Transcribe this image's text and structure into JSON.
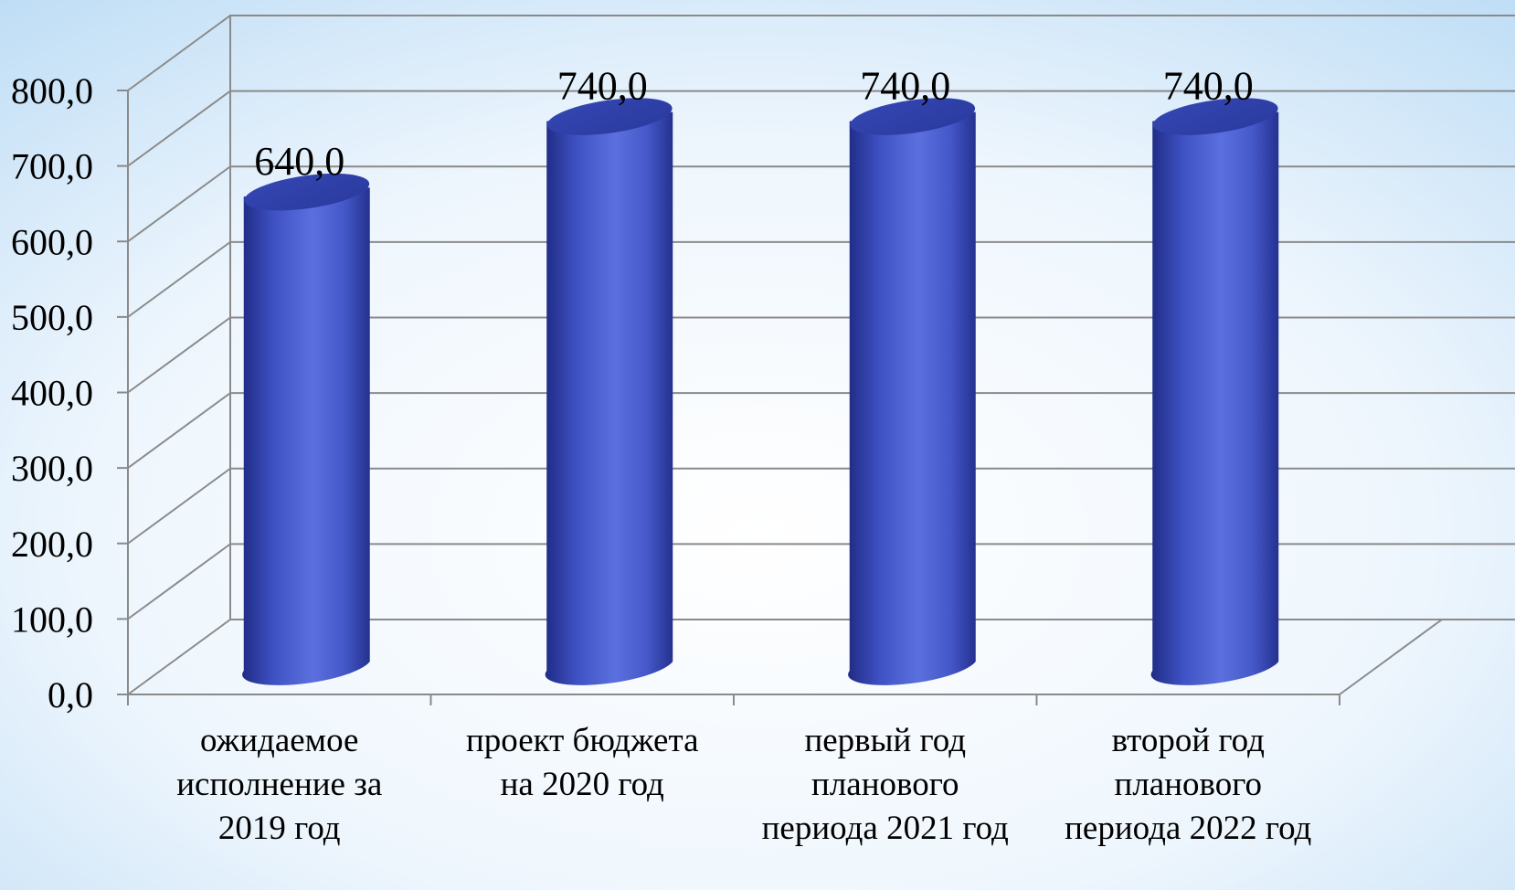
{
  "chart_data": {
    "type": "bar",
    "style": "3d-cylinder",
    "categories": [
      [
        "ожидаемое",
        "исполнение за",
        "2019 год"
      ],
      [
        "проект бюджета",
        "на 2020 год"
      ],
      [
        "первый год",
        "планового",
        "периода 2021 год"
      ],
      [
        "второй год",
        "планового",
        "периода 2022 год"
      ]
    ],
    "values": [
      640.0,
      740.0,
      740.0,
      740.0
    ],
    "data_labels": [
      "640,0",
      "740,0",
      "740,0",
      "740,0"
    ],
    "y_ticks": [
      "0,0",
      "100,0",
      "200,0",
      "300,0",
      "400,0",
      "500,0",
      "600,0",
      "700,0",
      "800,0"
    ],
    "ylim": [
      0,
      800
    ],
    "title": "",
    "xlabel": "",
    "ylabel": "",
    "grid": true,
    "legend": "none",
    "colors": {
      "bar": "#4a5fcf",
      "bar_dark": "#2a3a9a",
      "bar_light": "#6b80e6",
      "grid": "#8a8a8a",
      "background": "#d8ecfa"
    }
  }
}
